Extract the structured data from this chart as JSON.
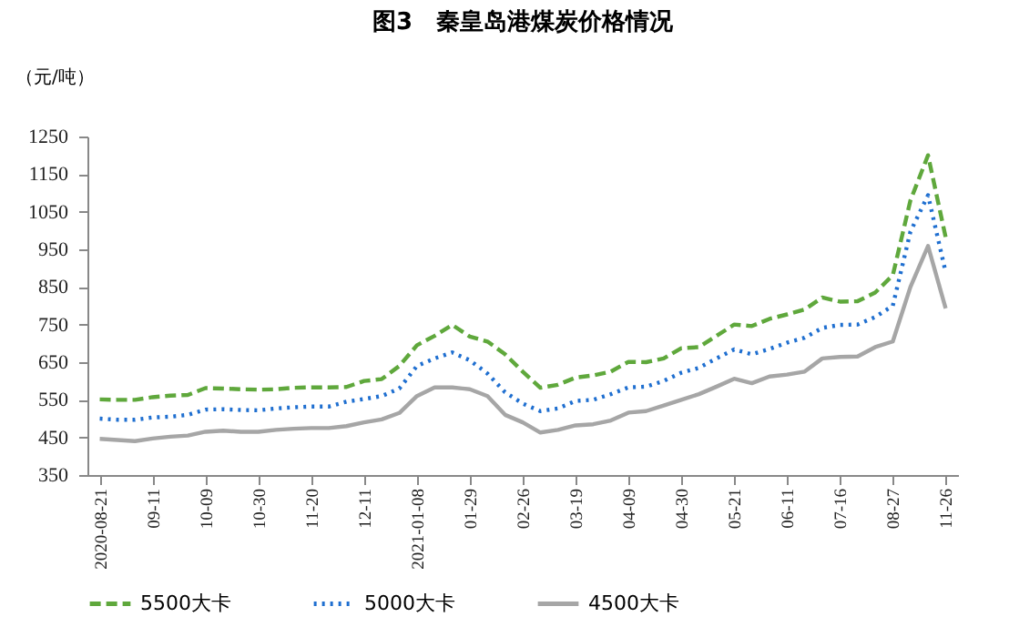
{
  "chart_data": {
    "type": "line",
    "title": "图3　秦皇岛港煤炭价格情况",
    "ylabel": "（元/吨）",
    "categories": [
      "2020-08-21",
      null,
      null,
      "09-11",
      null,
      null,
      "10-09",
      null,
      null,
      "10-30",
      null,
      null,
      "11-20",
      null,
      null,
      "12-11",
      null,
      null,
      "2021-01-08",
      null,
      null,
      "01-29",
      null,
      null,
      "02-26",
      null,
      null,
      "03-19",
      null,
      null,
      "04-09",
      null,
      null,
      "04-30",
      null,
      null,
      "05-21",
      null,
      null,
      "06-11",
      null,
      null,
      "07-16",
      null,
      null,
      "08-27",
      null,
      null,
      "11-26"
    ],
    "series": [
      {
        "name": "5500大卡",
        "color": "#5fa83c",
        "line_style": "dashed",
        "values": [
          551,
          550,
          550,
          557,
          561,
          563,
          581,
          580,
          578,
          577,
          578,
          582,
          583,
          583,
          584,
          600,
          605,
          640,
          695,
          720,
          749,
          718,
          705,
          671,
          625,
          582,
          590,
          609,
          615,
          625,
          651,
          650,
          660,
          687,
          690,
          720,
          750,
          746,
          765,
          777,
          790,
          822,
          811,
          812,
          835,
          881,
          1080,
          1200,
          982
        ]
      },
      {
        "name": "5000大卡",
        "color": "#1f6fd0",
        "line_style": "dotted",
        "values": [
          500,
          497,
          497,
          503,
          505,
          510,
          524,
          525,
          523,
          522,
          527,
          530,
          532,
          532,
          545,
          552,
          560,
          580,
          640,
          660,
          676,
          655,
          620,
          570,
          540,
          520,
          527,
          547,
          550,
          565,
          583,
          585,
          600,
          622,
          635,
          660,
          684,
          671,
          685,
          702,
          715,
          741,
          749,
          750,
          770,
          800,
          997,
          1094,
          889
        ]
      },
      {
        "name": "4500大卡",
        "color": "#a6a6a6",
        "line_style": "solid",
        "values": [
          446,
          443,
          440,
          447,
          452,
          455,
          465,
          468,
          465,
          465,
          470,
          473,
          475,
          475,
          480,
          490,
          498,
          515,
          560,
          583,
          583,
          578,
          560,
          510,
          490,
          463,
          470,
          482,
          485,
          495,
          516,
          520,
          535,
          550,
          565,
          585,
          606,
          594,
          612,
          617,
          625,
          660,
          664,
          665,
          690,
          705,
          850,
          959,
          793
        ]
      }
    ],
    "ylim": [
      350,
      1250
    ],
    "yticks": [
      350,
      450,
      550,
      650,
      750,
      850,
      950,
      1050,
      1150,
      1250
    ],
    "grid": false,
    "legend": "bottom"
  }
}
